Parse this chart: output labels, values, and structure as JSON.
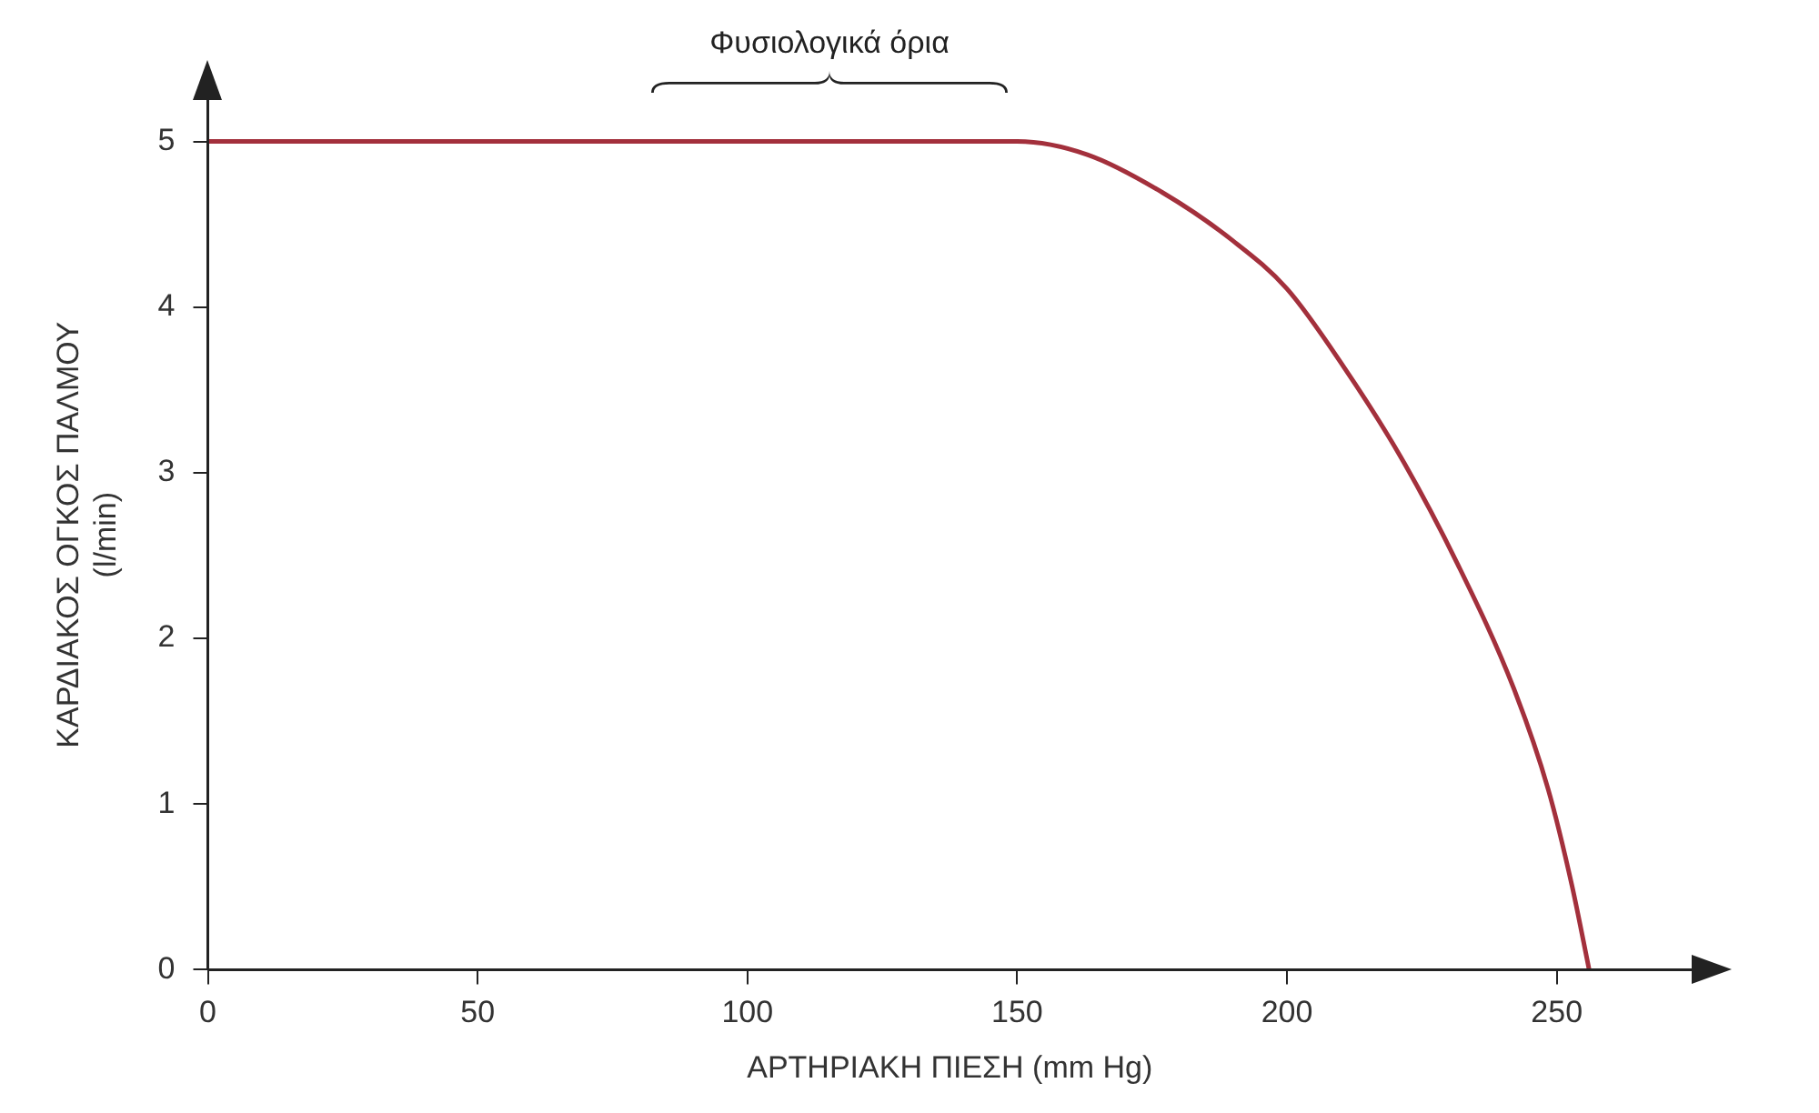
{
  "chart_data": {
    "type": "line",
    "xlabel": "ΑΡΤΗΡΙΑΚΗ ΠΙΕΣΗ (mm Hg)",
    "ylabel": "ΚΑΡΔΙΑΚΟΣ ΟΓΚΟΣ ΠΑΛΜΟΥ\n(l/min)",
    "series": [
      {
        "color": "#a3303c",
        "x": [
          0,
          50,
          100,
          150,
          163,
          177,
          190,
          200,
          210.5,
          221,
          231.6,
          242,
          248.4,
          252.8,
          256
        ],
        "values": [
          5,
          5,
          5,
          5,
          4.92,
          4.69,
          4.4,
          4.11,
          3.64,
          3.1,
          2.45,
          1.7,
          1.09,
          0.51,
          0
        ]
      }
    ],
    "xlim": [
      0,
      275
    ],
    "ylim": [
      0,
      5.25
    ],
    "xticks": [
      0,
      50,
      100,
      150,
      200,
      250
    ],
    "yticks": [
      0,
      1,
      2,
      3,
      4,
      5
    ],
    "annotations": [
      "Φυσιολογικά όρια"
    ],
    "grid": false,
    "legend": false,
    "marker": "none",
    "line_style": "solid"
  }
}
